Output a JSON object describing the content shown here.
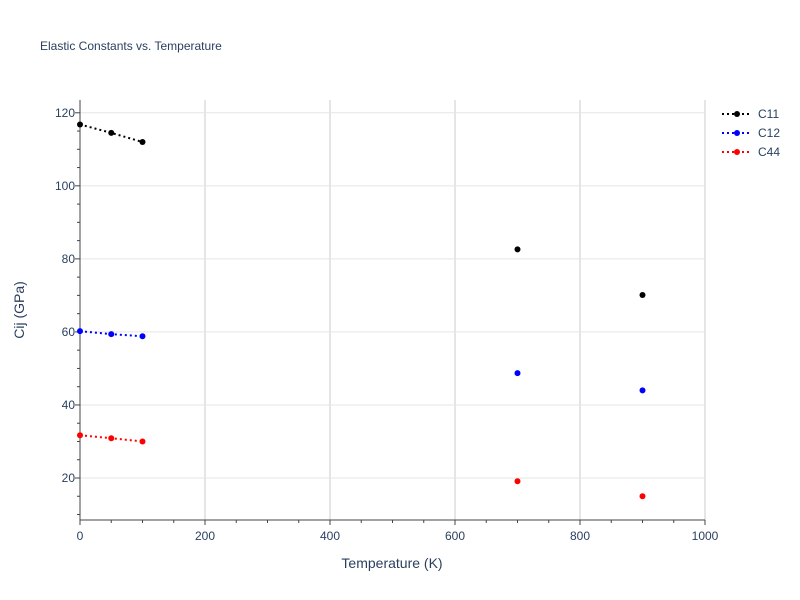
{
  "chart_data": {
    "type": "scatter",
    "title": "Elastic Constants vs. Temperature",
    "xlabel": "Temperature (K)",
    "ylabel": "Cij (GPa)",
    "xlim": [
      0,
      1000
    ],
    "ylim": [
      8.5,
      123.5
    ],
    "x_ticks": [
      0,
      200,
      400,
      600,
      800,
      1000
    ],
    "y_ticks": [
      20,
      40,
      60,
      80,
      100,
      120
    ],
    "grid": true,
    "legend_position": "top-right",
    "series": [
      {
        "name": "C11",
        "color": "#000000",
        "line_x": [
          0,
          50,
          100
        ],
        "line_y": [
          116.8,
          114.5,
          112
        ],
        "x": [
          0,
          50,
          100,
          700,
          900
        ],
        "y": [
          116.8,
          114.5,
          112,
          82.6,
          70.1
        ]
      },
      {
        "name": "C12",
        "color": "#0000ff",
        "line_x": [
          0,
          50,
          100
        ],
        "line_y": [
          60.2,
          59.4,
          58.8
        ],
        "x": [
          0,
          50,
          100,
          700,
          900
        ],
        "y": [
          60.2,
          59.4,
          58.8,
          48.7,
          44
        ]
      },
      {
        "name": "C44",
        "color": "#ff0000",
        "line_x": [
          0,
          50,
          100
        ],
        "line_y": [
          31.7,
          30.9,
          30
        ],
        "x": [
          0,
          50,
          100,
          700,
          900
        ],
        "y": [
          31.7,
          30.9,
          30,
          19.1,
          15
        ]
      }
    ]
  }
}
